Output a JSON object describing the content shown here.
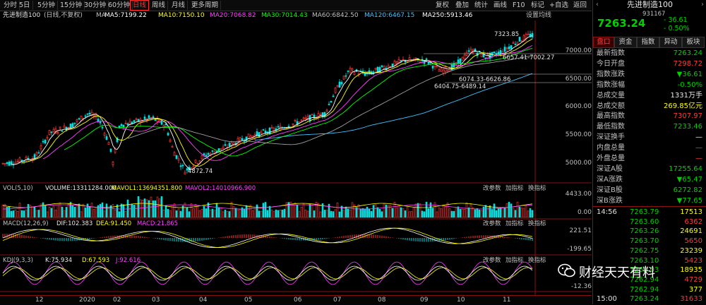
{
  "toolbar": {
    "periods": [
      "分时",
      "5日",
      "5分钟",
      "15分钟",
      "30分钟",
      "60分钟",
      "日线",
      "周线",
      "月线",
      "更多周期"
    ],
    "active": "日线",
    "right": [
      "复权",
      "叠加",
      "统计",
      "画线",
      "F10",
      "标记",
      "+自选",
      "返回"
    ]
  },
  "ma": {
    "name": "先进制造100",
    "mode": "(日线,不复权)",
    "ma_label": "MA",
    "items": [
      {
        "text": "MA5:7199.22",
        "color": "#ffffff"
      },
      {
        "text": "MA10:7150.10",
        "color": "#ffff00"
      },
      {
        "text": "MA20:7068.82",
        "color": "#ff40ff"
      },
      {
        "text": "MA30:7014.43",
        "color": "#00ff00"
      },
      {
        "text": "MA60:6842.50",
        "color": "#c0c0c0"
      },
      {
        "text": "MA120:6467.15",
        "color": "#40c0ff"
      },
      {
        "text": "MA250:5913.46",
        "color": "#ffffff"
      }
    ],
    "settings": "设置均线"
  },
  "price_axis": [
    "7000.00",
    "6500.00",
    "6000.00",
    "5500.00",
    "5000.00"
  ],
  "annotations": {
    "high": "7323.85",
    "low": "4872.74",
    "line1": "6657.41-7002.27",
    "line2": "6074.33-6626.86",
    "line3": "6404.75-6489.14"
  },
  "vol": {
    "title": "VOL(5,10)",
    "volume": "VOLUME:13311284.000",
    "mavol1": "MAVOL1:13694351.800",
    "mavol2": "MAVOL2:14010966.900",
    "btns": [
      "改参数",
      "加指标",
      "换指标"
    ],
    "axis": [
      "4433.00",
      "0.00"
    ]
  },
  "macd": {
    "title": "MACD(12,26,9)",
    "dif": "DIF:102.383",
    "dea": "DEA:91.450",
    "macd": "MACD:21.865",
    "btns": [
      "改参数",
      "加指标",
      "换指标"
    ],
    "axis": [
      "221.51",
      "-199.65"
    ]
  },
  "kdj": {
    "title": "KDJ(9,3,3)",
    "k": "K:75.934",
    "d": "D:67.593",
    "j": "J:92.616",
    "btns": [
      "改参数",
      "加指标",
      "换指标"
    ],
    "axis": [
      "-12.36"
    ]
  },
  "x_axis": [
    "12",
    "2020",
    "02",
    "03",
    "04",
    "05",
    "06",
    "07",
    "08",
    "09",
    "10",
    "11"
  ],
  "right_panel": {
    "title": "先进制造100",
    "code": "931167",
    "price": "7263.24",
    "change": "- 36.61",
    "pct": "- 0.50%",
    "tabs": [
      "盘口",
      "资金",
      "指数",
      "异动",
      "板块"
    ],
    "active_tab": "盘口",
    "stats": [
      {
        "label": "最新指数",
        "value": "7263.24",
        "cls": "green"
      },
      {
        "label": "今日开盘",
        "value": "7298.72",
        "cls": "red"
      },
      {
        "label": "指数涨跌",
        "value": "▼36.61",
        "cls": "green"
      },
      {
        "label": "指数涨幅",
        "value": "-0.50%",
        "cls": "green"
      },
      {
        "label": "总成交量",
        "value": "1331万手",
        "cls": "white"
      },
      {
        "label": "总成交额",
        "value": "269.85亿元",
        "cls": "yellow"
      },
      {
        "label": "最高指数",
        "value": "7307.97",
        "cls": "red"
      },
      {
        "label": "最低指数",
        "value": "7233.46",
        "cls": "green"
      },
      {
        "label": "深证换手",
        "value": "—",
        "cls": "white"
      },
      {
        "label": "内盘总量",
        "value": "—",
        "cls": "green"
      },
      {
        "label": "外盘总量",
        "value": "—",
        "cls": "red"
      },
      {
        "label": "深证A股",
        "value": "17255.64",
        "cls": "green"
      },
      {
        "label": "深A涨跌",
        "value": "▼65.47",
        "cls": "green"
      },
      {
        "label": "深证B股",
        "value": "6272.82",
        "cls": "green"
      },
      {
        "label": "深B涨跌",
        "value": "▼77.65",
        "cls": "green"
      }
    ],
    "ticks": [
      {
        "time": "14:56",
        "price": "7263.79",
        "vol": "17513"
      },
      {
        "time": "",
        "price": "7263.60",
        "vol": "6362"
      },
      {
        "time": "",
        "price": "7263.26",
        "vol": "24691"
      },
      {
        "time": "",
        "price": "7263.70",
        "vol": "5650"
      },
      {
        "time": "",
        "price": "7262.75",
        "vol": "23239"
      },
      {
        "time": "",
        "price": "7263.10",
        "vol": "5423"
      },
      {
        "time": "",
        "price": "7263.03",
        "vol": "18935"
      },
      {
        "time": "",
        "price": "7262.94",
        "vol": "4729"
      },
      {
        "time": "",
        "price": "7262.94",
        "vol": "377"
      },
      {
        "time": "15:00",
        "price": "7263.24",
        "vol": "31633"
      }
    ]
  },
  "watermark": "财经天天有料"
}
